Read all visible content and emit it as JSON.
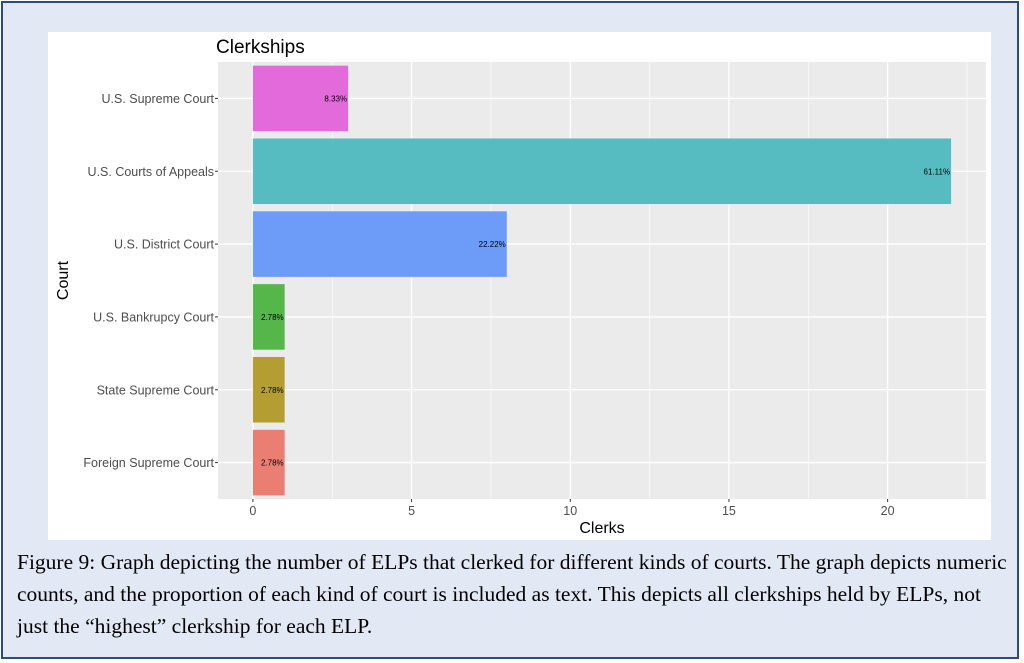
{
  "chart_data": {
    "type": "bar",
    "orientation": "horizontal",
    "title": "Clerkships",
    "xlabel": "Clerks",
    "ylabel": "Court",
    "xlim": [
      -1.1,
      23.1
    ],
    "xticks": [
      0,
      5,
      10,
      15,
      20
    ],
    "grid": true,
    "legend": "none",
    "categories": [
      "U.S. Supreme Court",
      "U.S. Courts of Appeals",
      "U.S. District Court",
      "U.S. Bankrupcy Court",
      "State Supreme Court",
      "Foreign Supreme Court"
    ],
    "values": [
      3,
      22,
      8,
      1,
      1,
      1
    ],
    "labels": [
      "8.33%",
      "61.11%",
      "22.22%",
      "2.78%",
      "2.78%",
      "2.78%"
    ],
    "colors": [
      "#e36ada",
      "#57bcc2",
      "#6c9bf8",
      "#55b64a",
      "#b49e32",
      "#ea7e72"
    ],
    "panel_background": "#ebebeb",
    "grid_color": "#ffffff"
  },
  "caption": "Figure 9: Graph depicting the number of ELPs that clerked for different kinds of courts. The graph depicts numeric counts, and the proportion of each kind of court is included as text. This depicts all clerkships held by ELPs, not just the “highest” clerkship for each ELP."
}
